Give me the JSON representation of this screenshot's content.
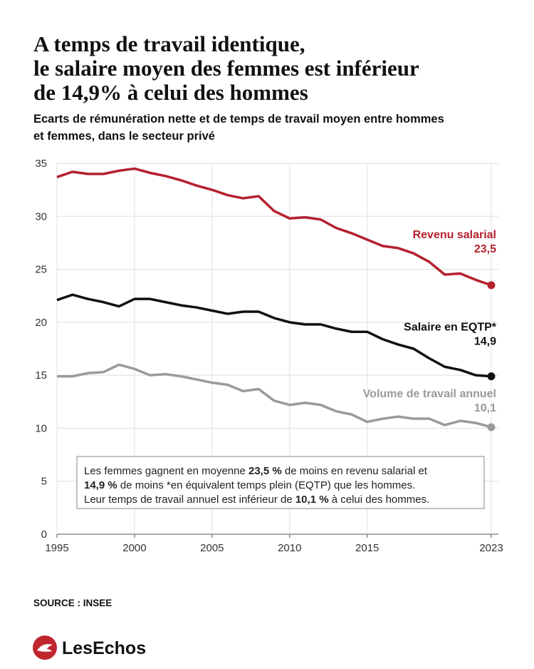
{
  "title_lines": [
    "A temps de travail identique,",
    "le salaire moyen des femmes est inférieur",
    "de 14,9% à celui des hommes"
  ],
  "subtitle_lines": [
    "Ecarts de rémunération nette et de temps de travail moyen entre hommes",
    "et femmes, dans le secteur privé"
  ],
  "chart_data": {
    "type": "line",
    "x": [
      1995,
      1996,
      1997,
      1998,
      1999,
      2000,
      2001,
      2002,
      2003,
      2004,
      2005,
      2006,
      2007,
      2008,
      2009,
      2010,
      2011,
      2012,
      2013,
      2014,
      2015,
      2016,
      2017,
      2018,
      2019,
      2020,
      2021,
      2022,
      2023
    ],
    "series": [
      {
        "name": "Revenu salarial",
        "color": "#b5202e",
        "values": [
          33.7,
          34.2,
          34.0,
          34.0,
          34.3,
          34.5,
          34.1,
          33.8,
          33.4,
          32.9,
          32.5,
          32.0,
          31.7,
          31.9,
          30.5,
          29.8,
          29.9,
          29.7,
          28.9,
          28.4,
          27.8,
          27.2,
          27.0,
          26.5,
          25.7,
          24.5,
          24.6,
          24.0,
          23.5
        ],
        "value_labels": [
          null,
          null,
          null,
          null,
          null,
          null,
          null,
          null,
          null,
          null,
          null,
          null,
          null,
          null,
          null,
          null,
          null,
          null,
          null,
          null,
          null,
          null,
          null,
          null,
          null,
          null,
          null,
          null,
          "23,5"
        ]
      },
      {
        "name": "Salaire en EQTP*",
        "color": "#111111",
        "values": [
          22.1,
          22.6,
          22.2,
          21.9,
          21.5,
          22.2,
          22.2,
          21.9,
          21.6,
          21.4,
          21.1,
          20.8,
          21.0,
          21.0,
          20.4,
          20.0,
          19.8,
          19.8,
          19.4,
          19.1,
          19.1,
          18.4,
          17.9,
          17.5,
          16.6,
          15.8,
          15.5,
          15.0,
          14.9
        ],
        "value_labels": [
          null,
          null,
          null,
          null,
          null,
          null,
          null,
          null,
          null,
          null,
          null,
          null,
          null,
          null,
          null,
          null,
          null,
          null,
          null,
          null,
          null,
          null,
          null,
          null,
          null,
          null,
          null,
          null,
          "14,9"
        ]
      },
      {
        "name": "Volume de travail annuel",
        "color": "#9a9a9a",
        "values": [
          14.9,
          14.9,
          15.2,
          15.3,
          16.0,
          15.6,
          15.0,
          15.1,
          14.9,
          14.6,
          14.3,
          14.1,
          13.5,
          13.7,
          12.6,
          12.2,
          12.4,
          12.2,
          11.6,
          11.3,
          10.6,
          10.9,
          11.1,
          10.9,
          10.9,
          10.3,
          10.7,
          10.5,
          10.1
        ],
        "value_labels": [
          null,
          null,
          null,
          null,
          null,
          null,
          null,
          null,
          null,
          null,
          null,
          null,
          null,
          null,
          null,
          null,
          null,
          null,
          null,
          null,
          null,
          null,
          null,
          null,
          null,
          null,
          null,
          null,
          "10,1"
        ]
      }
    ],
    "xlim": [
      1995,
      2023
    ],
    "xticks": [
      1995,
      2000,
      2005,
      2010,
      2015,
      2023
    ],
    "ylim": [
      0,
      35
    ],
    "yticks": [
      0,
      5,
      10,
      15,
      20,
      25,
      30,
      35
    ],
    "grid": true,
    "annotation_lines": [
      [
        {
          "text": "Les femmes gagnent en moyenne "
        },
        {
          "text": "23,5 %",
          "bold": true
        },
        {
          "text": " de moins en revenu salarial et"
        }
      ],
      [
        {
          "text": "14,9 %",
          "bold": true
        },
        {
          "text": " de moins *en équivalent temps plein (EQTP) que les hommes."
        }
      ],
      [
        {
          "text": "Leur temps de travail annuel est inférieur de "
        },
        {
          "text": "10,1 %",
          "bold": true
        },
        {
          "text": " à celui des hommes."
        }
      ]
    ]
  },
  "source": "SOURCE : INSEE",
  "logo": "LesEchos"
}
